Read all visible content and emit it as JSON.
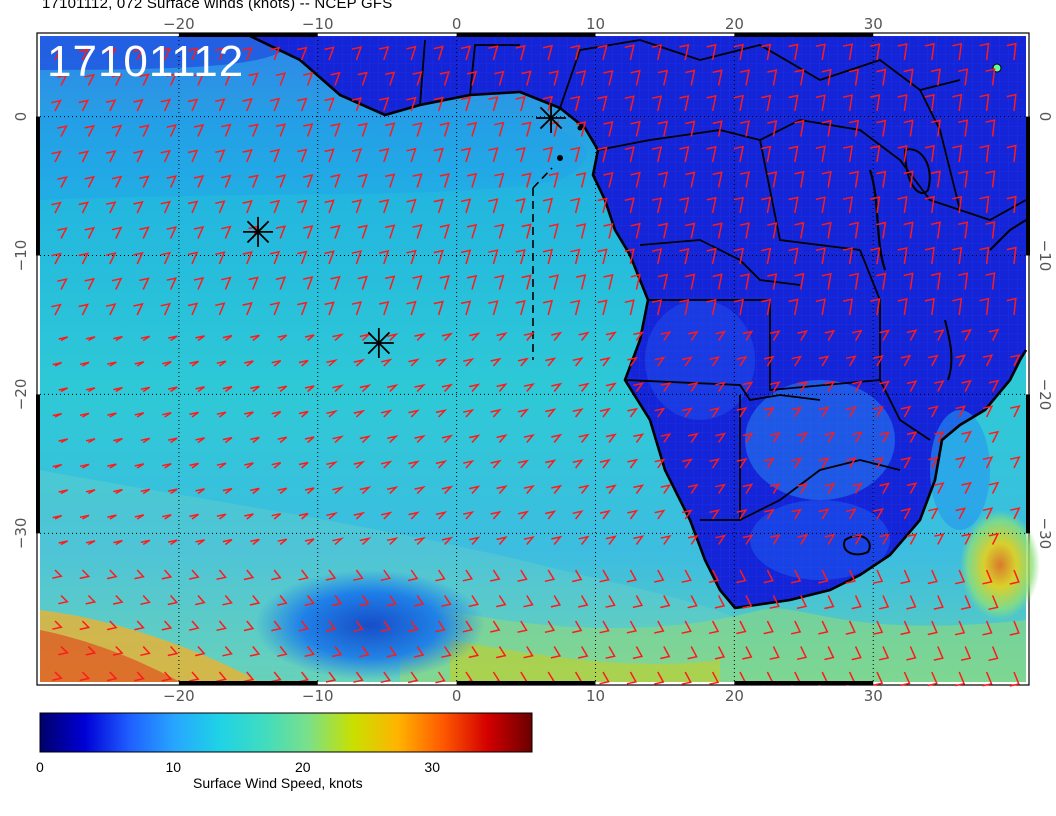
{
  "title": "17101112, 072 Surface winds (knots) -- NCEP GFS",
  "timestamp_label": "17101112",
  "map": {
    "lon_range": [
      -30,
      41
    ],
    "lat_range": [
      -40.7,
      5.8
    ],
    "lon_ticks": [
      "−20",
      "−10",
      "0",
      "10",
      "20",
      "30"
    ],
    "lat_ticks": [
      "0",
      "−10",
      "−20",
      "−30"
    ],
    "storm_markers": [
      {
        "lon": -14.3,
        "lat": -8.3
      },
      {
        "lon": -5.6,
        "lat": -16.3
      },
      {
        "lon": 6.8,
        "lat": -0.1
      }
    ],
    "barb_color": "#ff1a1a"
  },
  "colorbar": {
    "label": "Surface Wind Speed, knots",
    "range": [
      0,
      38
    ],
    "ticks": [
      "0",
      "10",
      "20",
      "30"
    ],
    "tick_values": [
      0,
      10,
      20,
      30
    ],
    "colors": [
      "#00006a",
      "#0000d6",
      "#1f5fff",
      "#27a6ff",
      "#1fd2e6",
      "#3fdcc0",
      "#7ae08a",
      "#c8e000",
      "#ffb400",
      "#ff5a00",
      "#d40000",
      "#6a0000"
    ]
  }
}
